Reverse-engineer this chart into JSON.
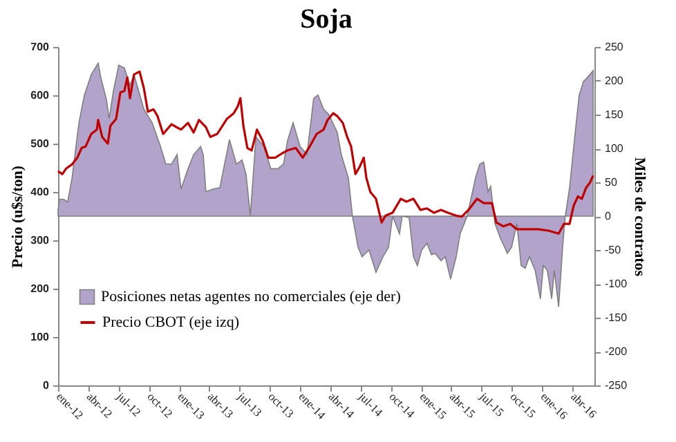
{
  "chart_data": {
    "type": "area",
    "title": "Soja",
    "ylabel": "Precio (u$s/ton)",
    "y2label": "Miles de contratos",
    "xlim": [
      "2012-01-01",
      "2016-06-06"
    ],
    "xticks": [
      {
        "value": "2012-01-01",
        "label": "ene-12"
      },
      {
        "value": "2012-04-01",
        "label": "abr-12"
      },
      {
        "value": "2012-07-01",
        "label": "jul-12"
      },
      {
        "value": "2012-10-01",
        "label": "oct-12"
      },
      {
        "value": "2013-01-01",
        "label": "ene-13"
      },
      {
        "value": "2013-04-01",
        "label": "abr-13"
      },
      {
        "value": "2013-07-01",
        "label": "jul-13"
      },
      {
        "value": "2013-10-01",
        "label": "oct-13"
      },
      {
        "value": "2014-01-01",
        "label": "ene-14"
      },
      {
        "value": "2014-04-01",
        "label": "abr-14"
      },
      {
        "value": "2014-07-01",
        "label": "jul-14"
      },
      {
        "value": "2014-10-01",
        "label": "oct-14"
      },
      {
        "value": "2015-01-01",
        "label": "ene-15"
      },
      {
        "value": "2015-04-01",
        "label": "abr-15"
      },
      {
        "value": "2015-07-01",
        "label": "jul-15"
      },
      {
        "value": "2015-10-01",
        "label": "oct-15"
      },
      {
        "value": "2016-01-01",
        "label": "ene-16"
      },
      {
        "value": "2016-04-01",
        "label": "abr-16"
      }
    ],
    "ylim": [
      0,
      700
    ],
    "yticks": [
      0,
      100,
      200,
      300,
      400,
      500,
      600,
      700
    ],
    "y2lim": [
      -250,
      250
    ],
    "y2ticks": [
      -250,
      -200,
      -150,
      -100,
      -50,
      0,
      50,
      100,
      150,
      200,
      250
    ],
    "legend": "bottom left",
    "series": [
      {
        "name": "Posiciones netas agentes no comerciales (eje der)",
        "axis": "y2",
        "color": "#b1a3c9",
        "x": [
          "2012-01-01",
          "2012-01-05",
          "2012-01-18",
          "2012-01-30",
          "2012-02-12",
          "2012-03-04",
          "2012-03-20",
          "2012-04-10",
          "2012-05-01",
          "2012-05-09",
          "2012-05-26",
          "2012-06-03",
          "2012-06-16",
          "2012-07-02",
          "2012-07-19",
          "2012-08-05",
          "2012-08-17",
          "2012-09-16",
          "2012-10-11",
          "2012-11-05",
          "2012-11-21",
          "2012-12-08",
          "2012-12-25",
          "2013-01-06",
          "2013-01-27",
          "2013-02-13",
          "2013-03-06",
          "2013-03-14",
          "2013-03-22",
          "2013-04-12",
          "2013-05-03",
          "2013-06-01",
          "2013-06-22",
          "2013-07-09",
          "2013-07-21",
          "2013-08-03",
          "2013-08-20",
          "2013-09-13",
          "2013-10-04",
          "2013-10-25",
          "2013-11-11",
          "2013-11-23",
          "2013-12-10",
          "2013-12-31",
          "2014-01-21",
          "2014-02-10",
          "2014-02-23",
          "2014-03-12",
          "2014-03-28",
          "2014-04-22",
          "2014-05-05",
          "2014-05-26",
          "2014-06-07",
          "2014-06-24",
          "2014-07-06",
          "2014-07-27",
          "2014-08-17",
          "2014-09-07",
          "2014-09-24",
          "2014-10-06",
          "2014-10-27",
          "2014-11-04",
          "2014-11-25",
          "2014-12-08",
          "2014-12-20",
          "2015-01-02",
          "2015-01-18",
          "2015-01-31",
          "2015-02-12",
          "2015-03-01",
          "2015-03-14",
          "2015-03-30",
          "2015-04-16",
          "2015-04-28",
          "2015-05-19",
          "2015-06-13",
          "2015-06-26",
          "2015-07-08",
          "2015-07-21",
          "2015-07-29",
          "2015-08-11",
          "2015-08-27",
          "2015-09-13",
          "2015-09-17",
          "2015-09-30",
          "2015-10-16",
          "2015-10-29",
          "2015-11-10",
          "2015-11-23",
          "2015-12-10",
          "2015-12-26",
          "2016-01-04",
          "2016-01-16",
          "2016-01-29",
          "2016-02-06",
          "2016-02-19",
          "2016-03-02",
          "2016-03-10",
          "2016-03-23",
          "2016-04-09",
          "2016-04-21",
          "2016-05-04",
          "2016-05-16",
          "2016-06-02"
        ],
        "values": [
          9,
          25,
          25,
          21,
          56,
          138,
          178,
          209,
          226,
          205,
          172,
          144,
          185,
          223,
          219,
          193,
          209,
          158,
          138,
          103,
          77,
          77,
          91,
          40,
          70,
          91,
          103,
          91,
          36,
          40,
          42,
          113,
          77,
          83,
          62,
          1,
          117,
          103,
          70,
          70,
          77,
          111,
          138,
          103,
          91,
          174,
          179,
          158,
          150,
          124,
          90,
          56,
          0,
          -46,
          -60,
          -50,
          -83,
          -60,
          -46,
          0,
          -26,
          0,
          -2,
          -60,
          -73,
          -50,
          -40,
          -57,
          -55,
          -66,
          -60,
          -93,
          -60,
          -26,
          0,
          56,
          77,
          80,
          36,
          44,
          -11,
          -32,
          -50,
          -55,
          -46,
          -11,
          -73,
          -77,
          -60,
          -80,
          -122,
          -73,
          -80,
          -122,
          -80,
          -134,
          -46,
          0,
          42,
          124,
          179,
          199,
          205,
          215
        ]
      },
      {
        "name": "Precio CBOT (eje izq)",
        "type": "line",
        "axis": "y",
        "color": "#c00000",
        "x": [
          "2012-01-01",
          "2012-01-14",
          "2012-01-26",
          "2012-02-12",
          "2012-02-28",
          "2012-03-12",
          "2012-03-24",
          "2012-04-10",
          "2012-04-27",
          "2012-05-01",
          "2012-05-13",
          "2012-05-30",
          "2012-06-07",
          "2012-06-24",
          "2012-07-07",
          "2012-07-19",
          "2012-07-28",
          "2012-08-05",
          "2012-08-17",
          "2012-09-03",
          "2012-09-16",
          "2012-09-28",
          "2012-10-15",
          "2012-10-27",
          "2012-11-13",
          "2012-12-08",
          "2013-01-06",
          "2013-01-27",
          "2013-02-13",
          "2013-03-01",
          "2013-03-22",
          "2013-04-04",
          "2013-04-25",
          "2013-05-11",
          "2013-05-24",
          "2013-06-14",
          "2013-06-26",
          "2013-07-04",
          "2013-07-13",
          "2013-07-25",
          "2013-08-07",
          "2013-08-23",
          "2013-09-09",
          "2013-09-26",
          "2013-10-17",
          "2013-11-07",
          "2013-11-23",
          "2013-12-18",
          "2014-01-08",
          "2014-01-29",
          "2014-02-19",
          "2014-03-12",
          "2014-03-24",
          "2014-04-10",
          "2014-04-22",
          "2014-05-09",
          "2014-05-22",
          "2014-06-03",
          "2014-06-16",
          "2014-06-28",
          "2014-07-11",
          "2014-07-19",
          "2014-07-31",
          "2014-08-17",
          "2014-09-03",
          "2014-09-15",
          "2014-10-06",
          "2014-10-31",
          "2014-11-17",
          "2014-12-08",
          "2014-12-29",
          "2015-01-18",
          "2015-02-08",
          "2015-03-01",
          "2015-03-22",
          "2015-04-16",
          "2015-05-03",
          "2015-05-23",
          "2015-06-18",
          "2015-07-08",
          "2015-08-02",
          "2015-08-15",
          "2015-09-05",
          "2015-09-26",
          "2015-10-16",
          "2015-11-19",
          "2015-12-18",
          "2016-01-20",
          "2016-02-19",
          "2016-03-06",
          "2016-03-23",
          "2016-04-04",
          "2016-04-17",
          "2016-04-29",
          "2016-05-12",
          "2016-05-24",
          "2016-06-02"
        ],
        "values": [
          443,
          437,
          449,
          457,
          471,
          491,
          494,
          520,
          529,
          549,
          514,
          500,
          537,
          551,
          606,
          609,
          637,
          594,
          643,
          649,
          614,
          566,
          571,
          557,
          520,
          540,
          529,
          543,
          523,
          549,
          534,
          514,
          520,
          537,
          551,
          563,
          577,
          594,
          537,
          491,
          486,
          529,
          506,
          471,
          471,
          480,
          486,
          491,
          471,
          494,
          520,
          529,
          549,
          563,
          557,
          543,
          514,
          494,
          437,
          451,
          471,
          429,
          400,
          386,
          337,
          351,
          357,
          386,
          380,
          386,
          363,
          366,
          357,
          363,
          357,
          351,
          349,
          363,
          386,
          377,
          377,
          337,
          329,
          334,
          323,
          323,
          323,
          320,
          314,
          334,
          334,
          371,
          391,
          386,
          409,
          420,
          434
        ]
      }
    ]
  }
}
